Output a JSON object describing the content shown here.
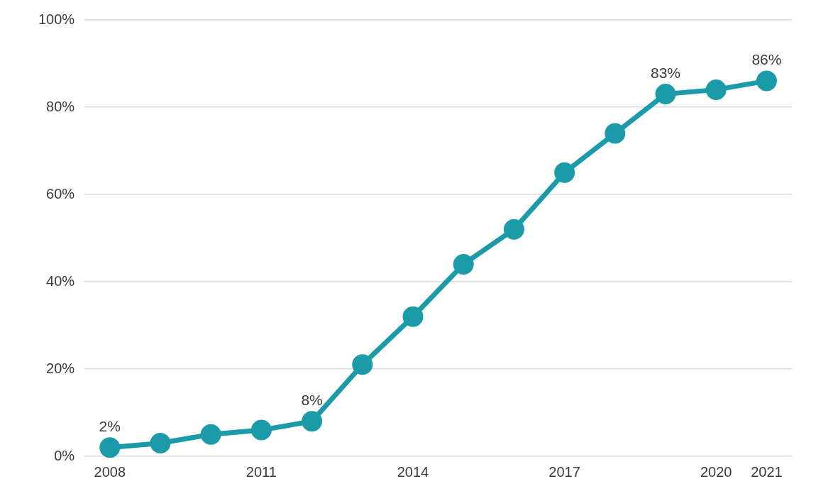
{
  "chart_data": {
    "type": "line",
    "categories": [
      "2008",
      null,
      null,
      "2011",
      null,
      null,
      "2014",
      null,
      null,
      "2017",
      null,
      null,
      "2020",
      "2021"
    ],
    "values": [
      2,
      3,
      5,
      6,
      8,
      21,
      32,
      44,
      52,
      65,
      74,
      83,
      84,
      86
    ],
    "value_labels": [
      "2%",
      null,
      null,
      null,
      "8%",
      null,
      null,
      null,
      null,
      null,
      null,
      "83%",
      null,
      "86%"
    ],
    "data_labels": true,
    "color": "#1b9aa8",
    "marker": "circle",
    "ylim": [
      0,
      100
    ],
    "yticks": [
      {
        "value": 0,
        "label": "0%"
      },
      {
        "value": 20,
        "label": "20%"
      },
      {
        "value": 40,
        "label": "40%"
      },
      {
        "value": 60,
        "label": "60%"
      },
      {
        "value": 80,
        "label": "80%"
      },
      {
        "value": 100,
        "label": "100%"
      }
    ],
    "grid": true
  }
}
